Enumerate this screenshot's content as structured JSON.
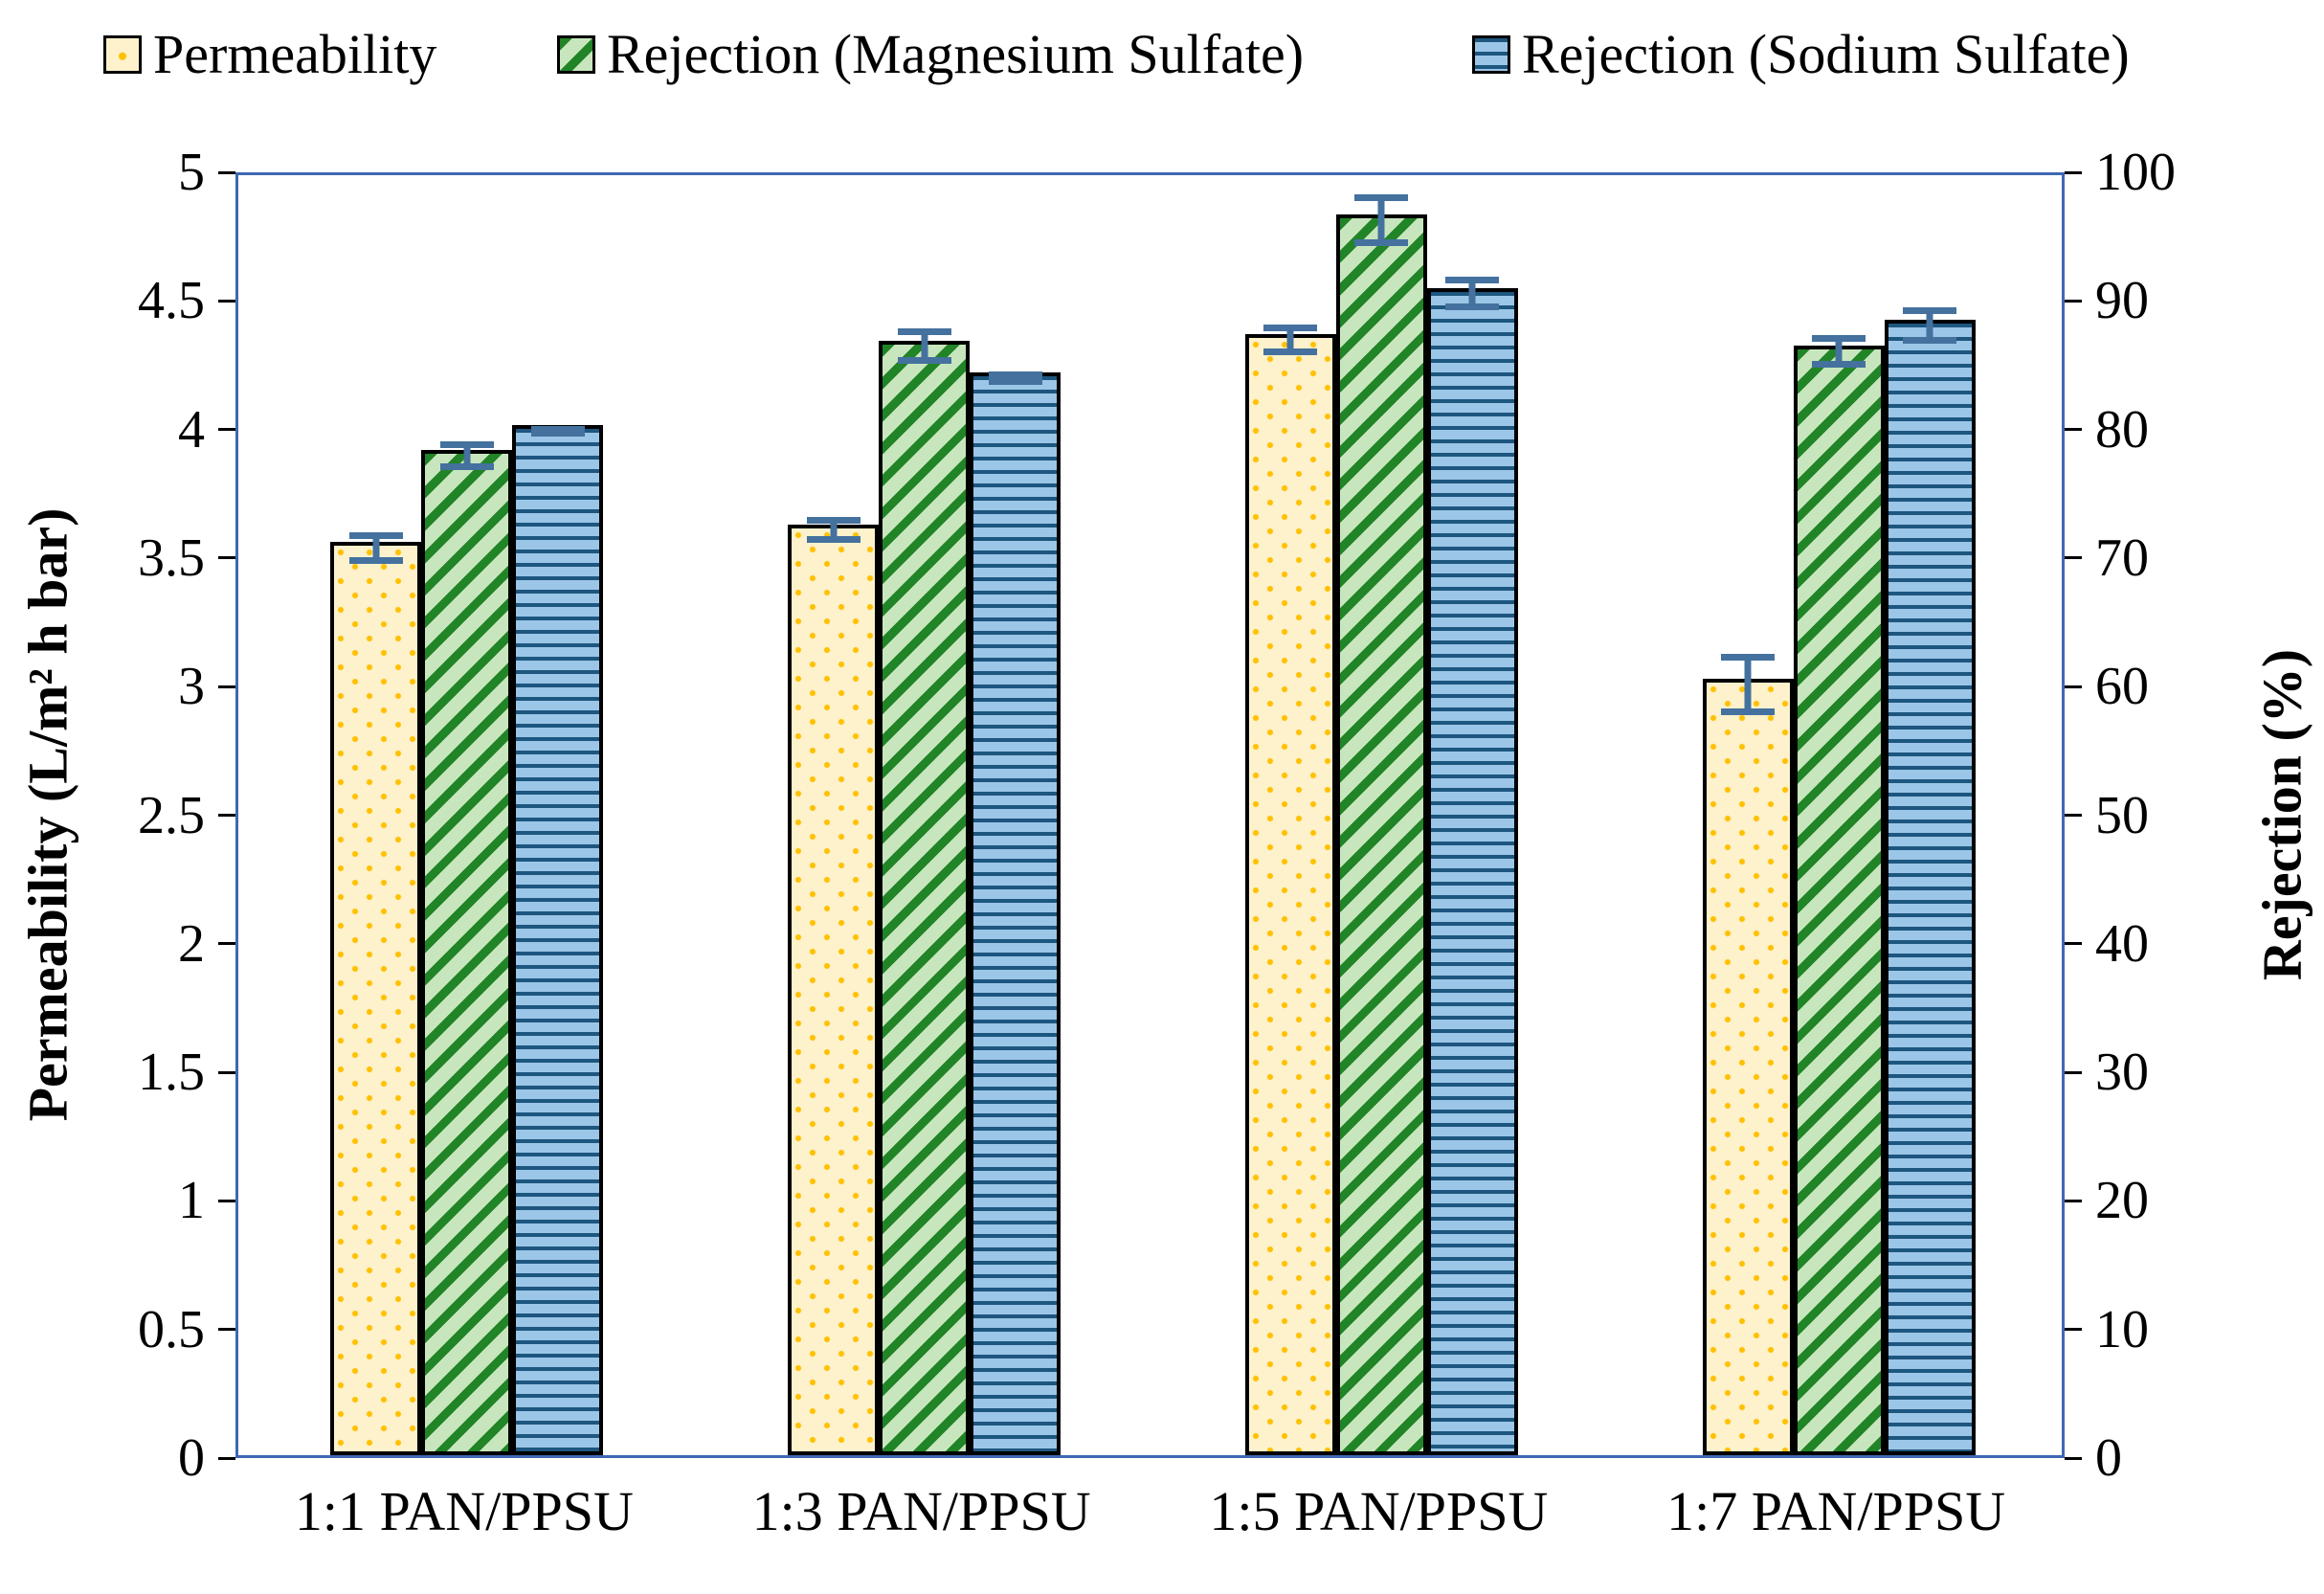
{
  "chart_data": {
    "type": "bar",
    "title": "",
    "categories": [
      "1:1 PAN/PPSU",
      "1:3 PAN/PPSU",
      "1:5 PAN/PPSU",
      "1:7 PAN/PPSU"
    ],
    "series": [
      {
        "name": "Permeability",
        "key": "permeability",
        "axis": "left",
        "values": [
          3.55,
          3.62,
          4.36,
          3.02
        ],
        "errors": [
          0.06,
          0.05,
          0.06,
          0.12
        ]
      },
      {
        "name": "Rejection (Magnesium Sulfate)",
        "key": "mgso4",
        "axis": "right",
        "values": [
          78.2,
          86.7,
          96.5,
          86.3
        ],
        "errors": [
          1.1,
          1.4,
          2.0,
          1.3
        ]
      },
      {
        "name": "Rejection (Sodium Sulfate)",
        "key": "na2so4",
        "axis": "right",
        "values": [
          80.1,
          84.2,
          90.8,
          88.3
        ],
        "errors": [
          0.4,
          0.5,
          1.3,
          1.4
        ]
      }
    ],
    "left_axis": {
      "label": "Permeability (L/m² h bar)",
      "min": 0,
      "max": 5,
      "tick_step": 0.5,
      "ticks": [
        "5",
        "4.5",
        "4",
        "3.5",
        "3",
        "2.5",
        "2",
        "1.5",
        "1",
        "0.5",
        "0"
      ]
    },
    "right_axis": {
      "label": "Rejection (%)",
      "min": 0,
      "max": 100,
      "tick_step": 10,
      "ticks": [
        "100",
        "90",
        "80",
        "70",
        "60",
        "50",
        "40",
        "30",
        "20",
        "10",
        "0"
      ]
    },
    "legend_position": "top",
    "grid": false,
    "error_bars": true
  },
  "colors": {
    "frame_blue": "#3E68B2",
    "error_bar": "#44719E",
    "permeability_fill": "#FDF2CC",
    "permeability_dot": "#FFC000",
    "mgso4_light": "#C8E6BE",
    "mgso4_dark": "#218427",
    "na2so4_light": "#9CC6E7",
    "na2so4_dark": "#1D567F",
    "bar_border": "#000000"
  }
}
